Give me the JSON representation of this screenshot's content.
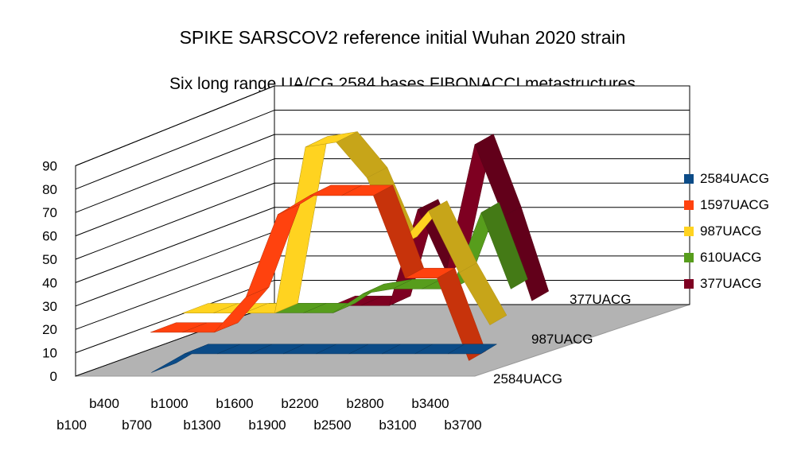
{
  "chart_data": {
    "type": "area",
    "variant": "3d-ribbon",
    "title": "SPIKE SARSCOV2 reference initial Wuhan 2020 strain",
    "subtitle": "Six long range UA/CG 2584 bases FIBONACCI metastructures",
    "categories": [
      "b100",
      "b400",
      "b700",
      "b1000",
      "b1300",
      "b1600",
      "b1900",
      "b2200",
      "b2500",
      "b2800",
      "b3100",
      "b3400",
      "b3700"
    ],
    "ylim": [
      0,
      90
    ],
    "yticks": [
      "0",
      "10",
      "20",
      "30",
      "40",
      "50",
      "60",
      "70",
      "80",
      "90"
    ],
    "depth_labels": [
      "2584UACG",
      "987UACG",
      "377UACG"
    ],
    "grid": true,
    "legend_position": "right",
    "series": [
      {
        "name": "2584UACG",
        "color": "#0b4b87",
        "values": [
          null,
          null,
          0,
          8,
          8,
          8,
          8,
          8,
          8,
          8,
          8,
          8,
          8
        ]
      },
      {
        "name": "1597UACG",
        "color": "#ff420e",
        "values": [
          null,
          12,
          12,
          12,
          27,
          62,
          70,
          70,
          70,
          35,
          35,
          0,
          null
        ]
      },
      {
        "name": "987UACG",
        "color": "#ffd320",
        "values": [
          null,
          15,
          15,
          15,
          15,
          85,
          87,
          72,
          43,
          58,
          32,
          10,
          null
        ]
      },
      {
        "name": "610UACG",
        "color": "#579d1c",
        "values": [
          null,
          null,
          10,
          10,
          10,
          10,
          18,
          20,
          20,
          20,
          52,
          20,
          null
        ]
      },
      {
        "name": "377UACG",
        "color": "#7e0021",
        "values": [
          null,
          null,
          null,
          null,
          8,
          8,
          8,
          48,
          22,
          75,
          45,
          10,
          null
        ]
      }
    ]
  }
}
